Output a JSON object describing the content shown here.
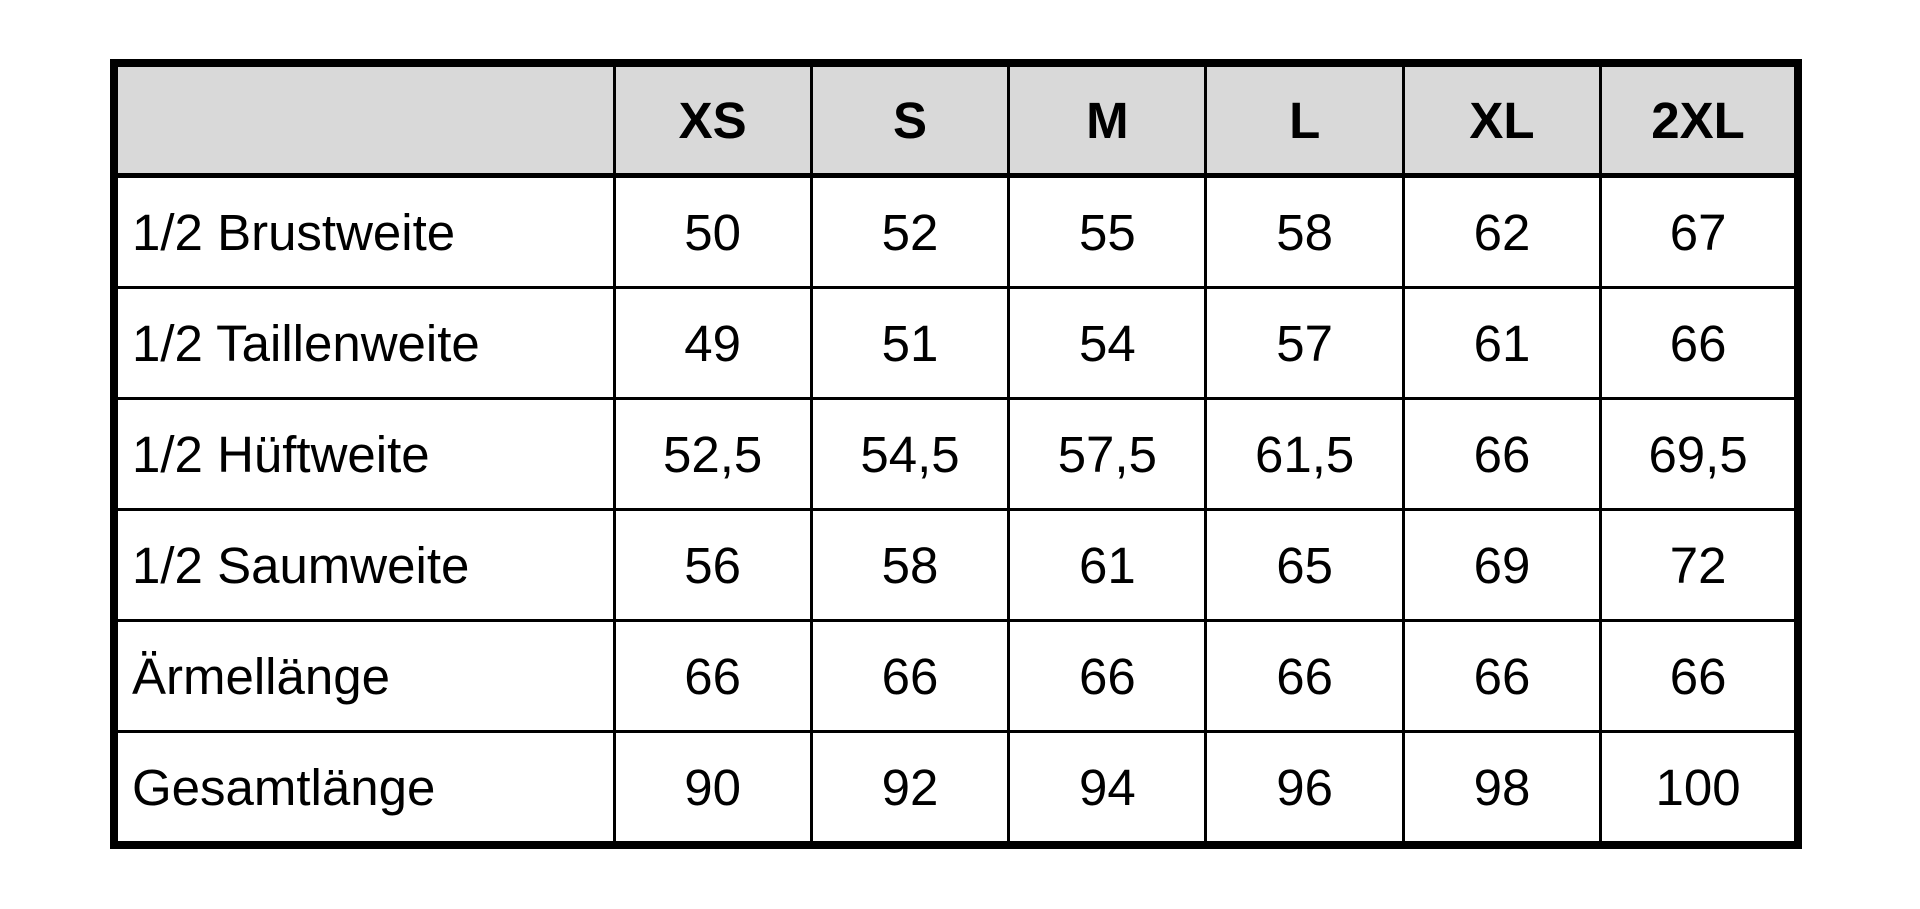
{
  "size_chart": {
    "headers": [
      "",
      "XS",
      "S",
      "M",
      "L",
      "XL",
      "2XL"
    ],
    "rows": [
      {
        "label": "1/2 Brustweite",
        "values": [
          "50",
          "52",
          "55",
          "58",
          "62",
          "67"
        ]
      },
      {
        "label": "1/2 Taillenweite",
        "values": [
          "49",
          "51",
          "54",
          "57",
          "61",
          "66"
        ]
      },
      {
        "label": "1/2 Hüftweite",
        "values": [
          "52,5",
          "54,5",
          "57,5",
          "61,5",
          "66",
          "69,5"
        ]
      },
      {
        "label": "1/2 Saumweite",
        "values": [
          "56",
          "58",
          "61",
          "65",
          "69",
          "72"
        ]
      },
      {
        "label": "Ärmellänge",
        "values": [
          "66",
          "66",
          "66",
          "66",
          "66",
          "66"
        ]
      },
      {
        "label": "Gesamtlänge",
        "values": [
          "90",
          "92",
          "94",
          "96",
          "98",
          "100"
        ]
      }
    ],
    "header_bg": "#d9d9d9"
  }
}
